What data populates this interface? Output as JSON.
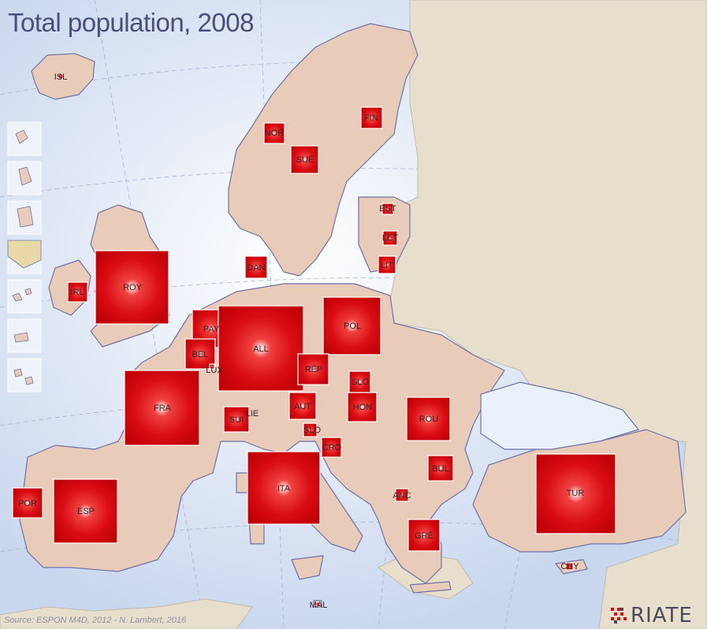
{
  "title": "Total population, 2008",
  "source": "Source: ESPON M4D, 2012 - N. Lambert, 2016",
  "logo": "RIATE",
  "colors": {
    "sea": "#d6e2f2",
    "land": "#e9cbb9",
    "outside": "#e7dfcc",
    "border": "#6e72a8",
    "symbol": "#d40d12"
  },
  "countries": [
    {
      "code": "ISL",
      "pop_rank": 1
    },
    {
      "code": "FIN",
      "pop_rank": 14
    },
    {
      "code": "NOR",
      "pop_rank": 12
    },
    {
      "code": "SUÉ",
      "pop_rank": 19
    },
    {
      "code": "EST",
      "pop_rank": 3
    },
    {
      "code": "LET",
      "pop_rank": 5
    },
    {
      "code": "LIT",
      "pop_rank": 9
    },
    {
      "code": "DAN",
      "pop_rank": 14
    },
    {
      "code": "IRL",
      "pop_rank": 11
    },
    {
      "code": "ROY",
      "pop_rank": 61
    },
    {
      "code": "POL",
      "pop_rank": 38
    },
    {
      "code": "PAY",
      "pop_rank": 25
    },
    {
      "code": "ALL",
      "pop_rank": 82
    },
    {
      "code": "BEL",
      "pop_rank": 19
    },
    {
      "code": "LUX",
      "pop_rank": 1
    },
    {
      "code": "RÉP",
      "pop_rank": 20
    },
    {
      "code": "SLO",
      "pop_rank": 11
    },
    {
      "code": "FRA",
      "pop_rank": 64
    },
    {
      "code": "AUT",
      "pop_rank": 18
    },
    {
      "code": "LIE",
      "pop_rank": 0
    },
    {
      "code": "SUI",
      "pop_rank": 15
    },
    {
      "code": "HON",
      "pop_rank": 21
    },
    {
      "code": "ROU",
      "pop_rank": 40
    },
    {
      "code": "SLO",
      "pop_rank": 4
    },
    {
      "code": "CRO",
      "pop_rank": 12
    },
    {
      "code": "BUL",
      "pop_rank": 16
    },
    {
      "code": "POR",
      "pop_rank": 27
    },
    {
      "code": "ESP",
      "pop_rank": 45
    },
    {
      "code": "ITA",
      "pop_rank": 59
    },
    {
      "code": "ANC",
      "pop_rank": 3
    },
    {
      "code": "TUR",
      "pop_rank": 70
    },
    {
      "code": "GRÈ",
      "pop_rank": 31
    },
    {
      "code": "CHY",
      "pop_rank": 1
    },
    {
      "code": "MAL",
      "pop_rank": 0
    }
  ]
}
